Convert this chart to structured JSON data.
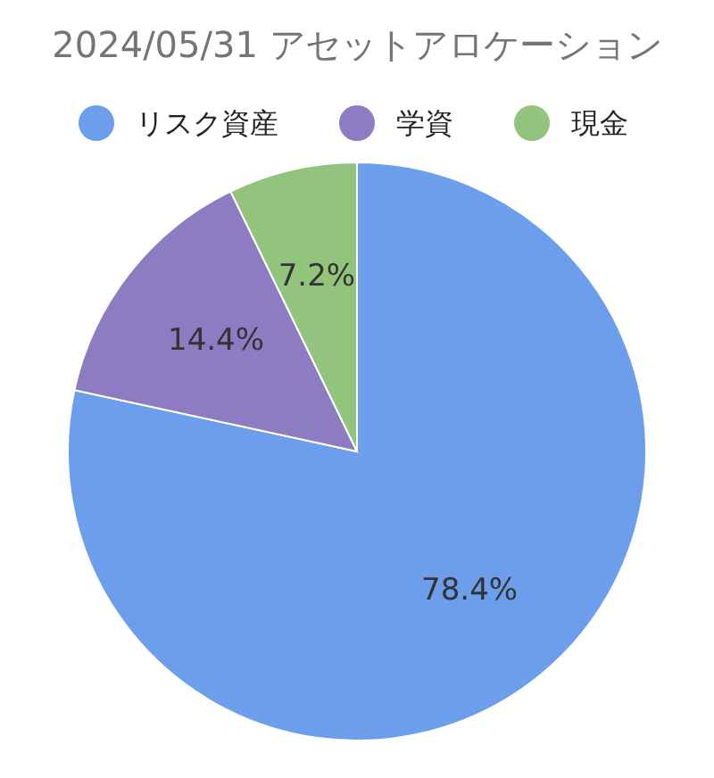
{
  "chart_data": {
    "type": "pie",
    "title": "2024/05/31 アセットアロケーション",
    "categories": [
      "リスク資産",
      "学資",
      "現金"
    ],
    "values": [
      78.4,
      14.4,
      7.2
    ],
    "colors": [
      "#6d9eeb",
      "#8e7cc3",
      "#93c47d"
    ],
    "value_labels": [
      "78.4%",
      "14.4%",
      "7.2%"
    ],
    "legend": "top"
  }
}
